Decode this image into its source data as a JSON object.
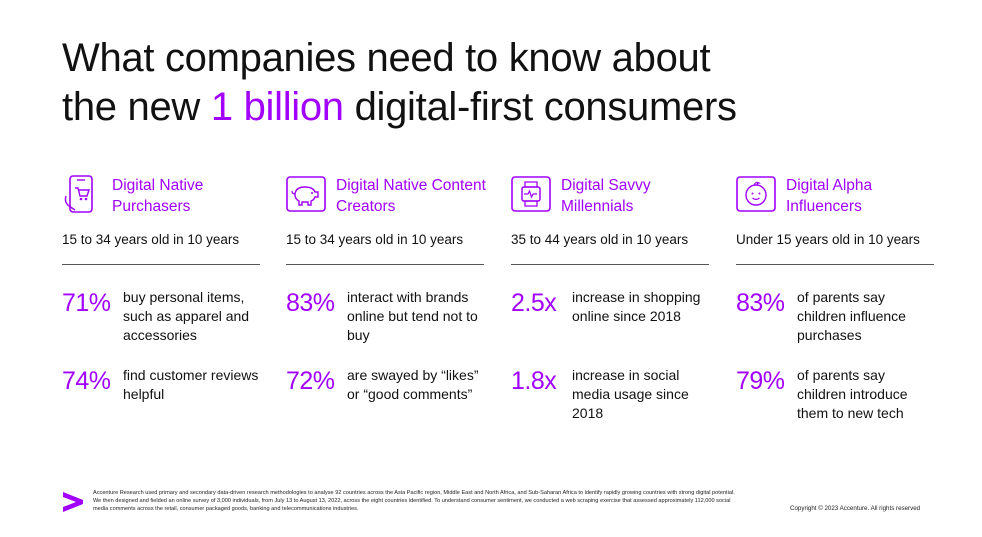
{
  "title": {
    "line1": "What companies need to know about",
    "line2_pre": "the new ",
    "line2_highlight": "1 billion",
    "line2_post": " digital-first consumers"
  },
  "accent_color": "#a100ff",
  "segments": [
    {
      "icon": "phone-cart-icon",
      "title": "Digital Native Purchasers",
      "age": "15 to 34 years old in 10 years",
      "stats": [
        {
          "value": "71%",
          "text": "buy personal items, such as apparel and accessories"
        },
        {
          "value": "74%",
          "text": "find customer reviews helpful"
        }
      ]
    },
    {
      "icon": "piggy-bank-icon",
      "title": "Digital Native Content Creators",
      "age": "15 to 34 years old in 10 years",
      "stats": [
        {
          "value": "83%",
          "text": "interact with brands online but tend not to buy"
        },
        {
          "value": "72%",
          "text": "are swayed by “likes” or “good comments”"
        }
      ]
    },
    {
      "icon": "smartwatch-icon",
      "title": "Digital Savvy Millennials",
      "age": "35 to 44 years old in 10 years",
      "stats": [
        {
          "value": "2.5x",
          "text": "increase in shopping online since 2018"
        },
        {
          "value": "1.8x",
          "text": "increase in social media usage since 2018"
        }
      ]
    },
    {
      "icon": "baby-face-icon",
      "title": "Digital Alpha Influencers",
      "age": "Under 15 years old in 10 years",
      "stats": [
        {
          "value": "83%",
          "text": "of parents say children influence purchases"
        },
        {
          "value": "79%",
          "text": "of parents say children introduce them to new tech"
        }
      ]
    }
  ],
  "footer": {
    "methodology": "Accenture Research used primary and secondary data-driven research methodologies to analyse 92 countries across the Asia Pacific region, Middle East and North Africa, and Sub-Saharan Africa to identify rapidly growing countries with strong digital potential. We then designed and fielded an online survey of 3,000 individuals, from July 13 to August 13, 2022, across the eight countries identified. To understand consumer sentiment, we conducted a web scraping exercise that assessed approximately 112,000 social media comments across the retail, consumer packaged goods, banking and telecommunications industries.",
    "copyright": "Copyright © 2023 Accenture. All rights reserved",
    "logo_icon": "accenture-chevron-icon"
  }
}
